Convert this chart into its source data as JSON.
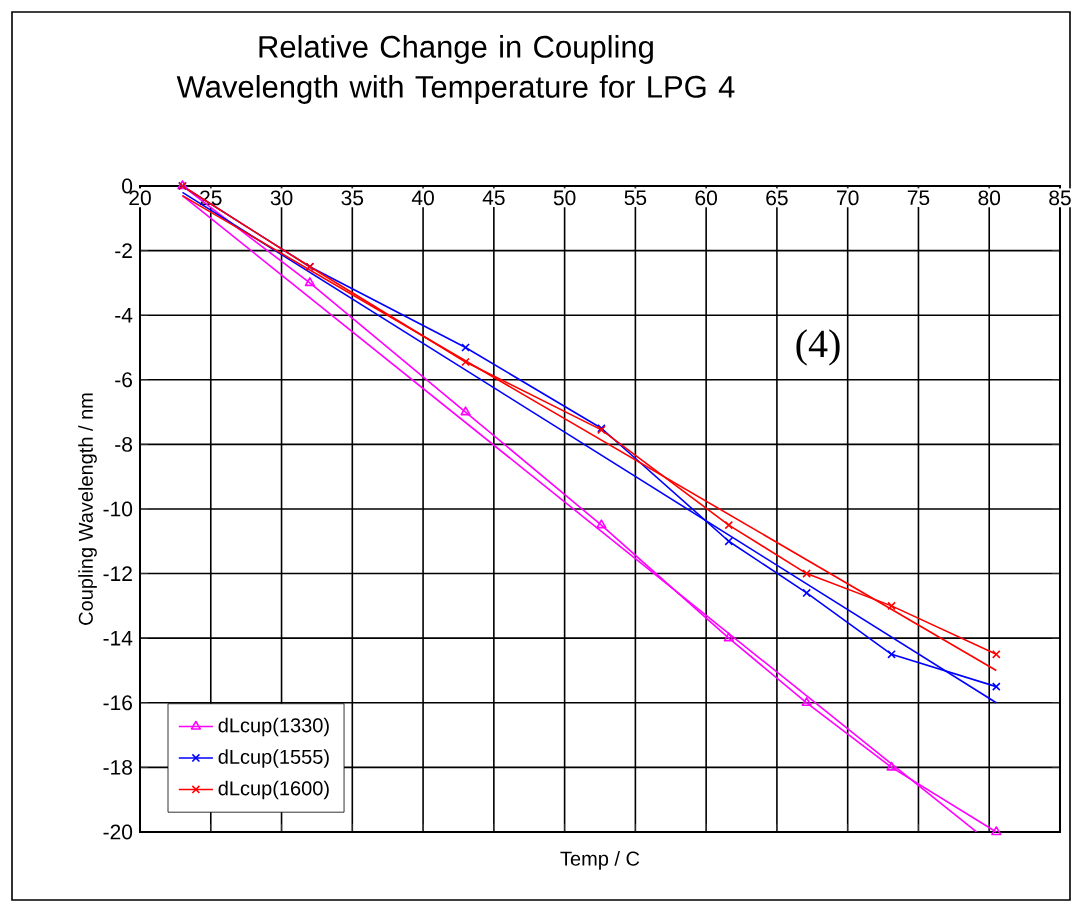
{
  "chart_data": {
    "type": "line",
    "title": "Relative Change in Coupling Wavelength with Temperature for LPG 4",
    "xlabel": "Temp / C",
    "ylabel": "Coupling Wavelength / nm",
    "annotations": [
      "(4)"
    ],
    "xlim": [
      20,
      85
    ],
    "xticks": [
      20,
      25,
      30,
      35,
      40,
      45,
      50,
      55,
      60,
      65,
      70,
      75,
      80,
      85
    ],
    "ylim": [
      -20,
      0
    ],
    "yticks": [
      -20,
      -18,
      -16,
      -14,
      -12,
      -10,
      -8,
      -6,
      -4,
      -2,
      0
    ],
    "grid": true,
    "legend": "bottom left",
    "line_style": "solid",
    "series": [
      {
        "name": "dLcup(1330)",
        "color": "#ff00ff",
        "marker": "triangle",
        "x": [
          23,
          32,
          43,
          52.6,
          61.6,
          67.1,
          73.1,
          80.5
        ],
        "values": [
          0,
          -3,
          -7,
          -10.5,
          -14,
          -16,
          -18,
          -20
        ]
      },
      {
        "name": "dLcup(1555)",
        "color": "#0000ff",
        "marker": "cross",
        "x": [
          23,
          32,
          43,
          52.6,
          61.6,
          67.1,
          73.1,
          80.5
        ],
        "values": [
          0,
          -2.5,
          -5,
          -7.5,
          -11,
          -12.6,
          -14.5,
          -15.5
        ]
      },
      {
        "name": "dLcup(1600)",
        "color": "#ff0000",
        "marker": "cross",
        "x": [
          23,
          32,
          43,
          52.6,
          61.6,
          67.1,
          73.1,
          80.5
        ],
        "values": [
          0,
          -2.5,
          -5.45,
          -7.55,
          -10.5,
          -12,
          -13,
          -14.5
        ]
      },
      {
        "type": "line",
        "color": "#ff00ff",
        "marker": "none",
        "x": [
          23,
          79.1
        ],
        "values": [
          -0.3,
          -20
        ]
      },
      {
        "type": "line",
        "color": "#0000ff",
        "marker": "none",
        "x": [
          23,
          80.5
        ],
        "values": [
          -0.2,
          -16
        ]
      },
      {
        "type": "line",
        "color": "#ff0000",
        "marker": "none",
        "x": [
          23,
          80.5
        ],
        "values": [
          -0.3,
          -15
        ]
      }
    ]
  }
}
